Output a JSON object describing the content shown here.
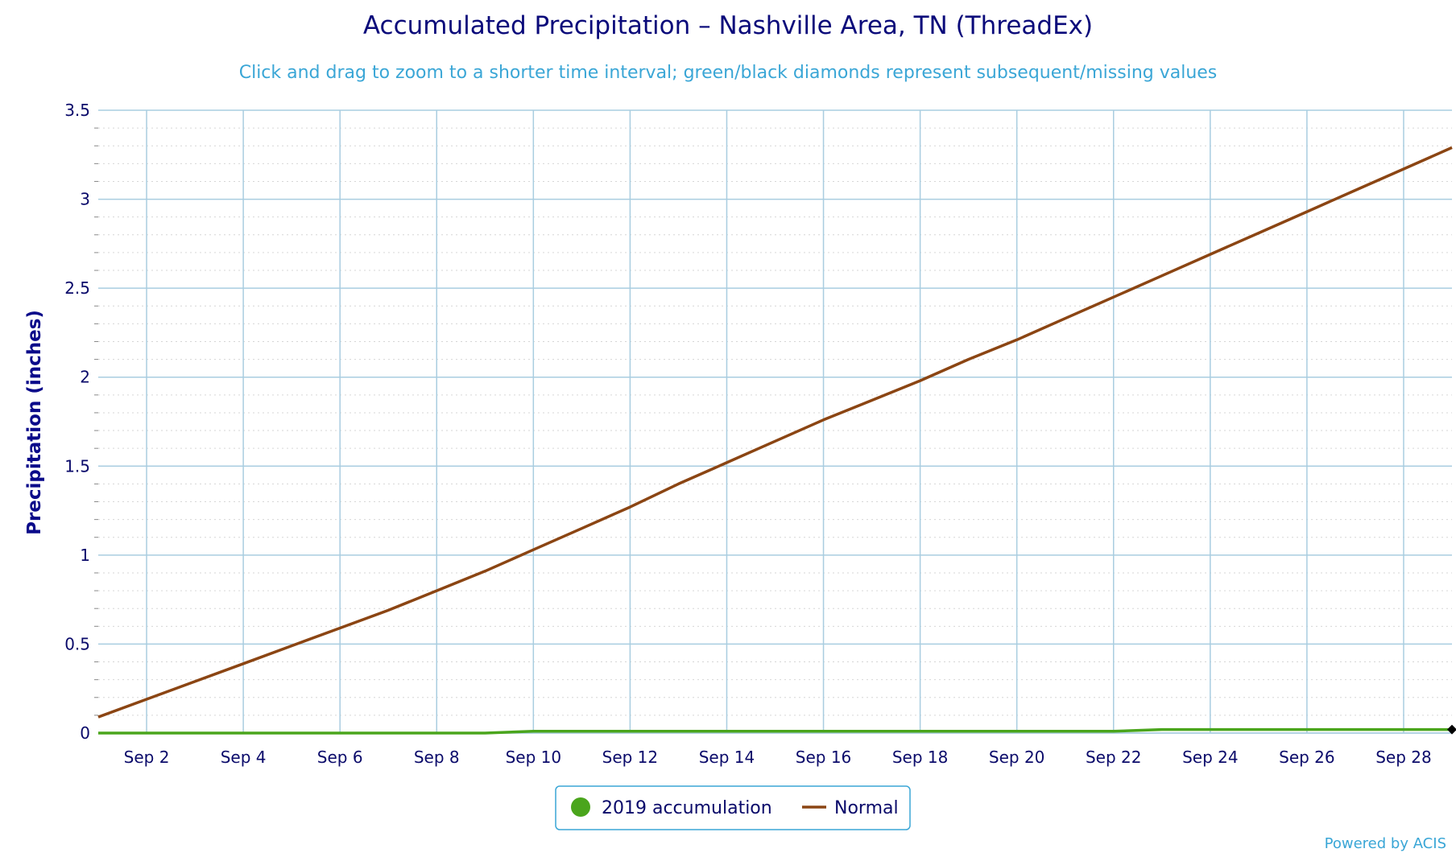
{
  "chart_data": {
    "type": "line",
    "title": "Accumulated Precipitation – Nashville Area, TN (ThreadEx)",
    "subtitle": "Click and drag to zoom to a shorter time interval; green/black diamonds represent subsequent/missing values",
    "ylabel": "Precipitation (inches)",
    "xlabel": "",
    "ylim": [
      0,
      3.5
    ],
    "yticks": [
      "0",
      "0.5",
      "1",
      "1.5",
      "2",
      "2.5",
      "3",
      "3.5"
    ],
    "xrange": [
      1,
      29
    ],
    "xticks": [
      {
        "day": 2,
        "label": "Sep 2"
      },
      {
        "day": 4,
        "label": "Sep 4"
      },
      {
        "day": 6,
        "label": "Sep 6"
      },
      {
        "day": 8,
        "label": "Sep 8"
      },
      {
        "day": 10,
        "label": "Sep 10"
      },
      {
        "day": 12,
        "label": "Sep 12"
      },
      {
        "day": 14,
        "label": "Sep 14"
      },
      {
        "day": 16,
        "label": "Sep 16"
      },
      {
        "day": 18,
        "label": "Sep 18"
      },
      {
        "day": 20,
        "label": "Sep 20"
      },
      {
        "day": 22,
        "label": "Sep 22"
      },
      {
        "day": 24,
        "label": "Sep 24"
      },
      {
        "day": 26,
        "label": "Sep 26"
      },
      {
        "day": 28,
        "label": "Sep 28"
      }
    ],
    "grid": true,
    "legend_position": "bottom-center",
    "series": [
      {
        "name": "2019 accumulation",
        "color": "#4aa51c",
        "x": [
          1,
          2,
          3,
          4,
          5,
          6,
          7,
          8,
          9,
          10,
          11,
          12,
          13,
          14,
          15,
          16,
          17,
          18,
          19,
          20,
          21,
          22,
          23,
          24,
          25,
          26,
          27,
          28,
          29
        ],
        "values": [
          0,
          0,
          0,
          0,
          0,
          0,
          0,
          0,
          0,
          0.01,
          0.01,
          0.01,
          0.01,
          0.01,
          0.01,
          0.01,
          0.01,
          0.01,
          0.01,
          0.01,
          0.01,
          0.01,
          0.02,
          0.02,
          0.02,
          0.02,
          0.02,
          0.02,
          0.02
        ]
      },
      {
        "name": "Normal",
        "color": "#8b4513",
        "x": [
          1,
          2,
          3,
          4,
          5,
          6,
          7,
          8,
          9,
          10,
          11,
          12,
          13,
          14,
          15,
          16,
          17,
          18,
          19,
          20,
          21,
          22,
          23,
          24,
          25,
          26,
          27,
          28,
          29
        ],
        "values": [
          0.09,
          0.19,
          0.29,
          0.39,
          0.49,
          0.59,
          0.69,
          0.8,
          0.91,
          1.03,
          1.15,
          1.27,
          1.4,
          1.52,
          1.64,
          1.76,
          1.87,
          1.98,
          2.1,
          2.21,
          2.33,
          2.45,
          2.57,
          2.69,
          2.81,
          2.93,
          3.05,
          3.17,
          3.29
        ]
      }
    ],
    "missing_marker": {
      "day": 29,
      "value": 0.02,
      "color": "#000000"
    }
  },
  "legend": {
    "items": [
      {
        "label": "2019 accumulation",
        "color": "#4aa51c",
        "symbol": "circle"
      },
      {
        "label": "Normal",
        "color": "#8b4513",
        "symbol": "line"
      }
    ]
  },
  "credit": "Powered by ACIS",
  "colors": {
    "grid": "#a9cde0",
    "axis_text": "#0a0a6a",
    "accent": "#3aa6d6"
  }
}
